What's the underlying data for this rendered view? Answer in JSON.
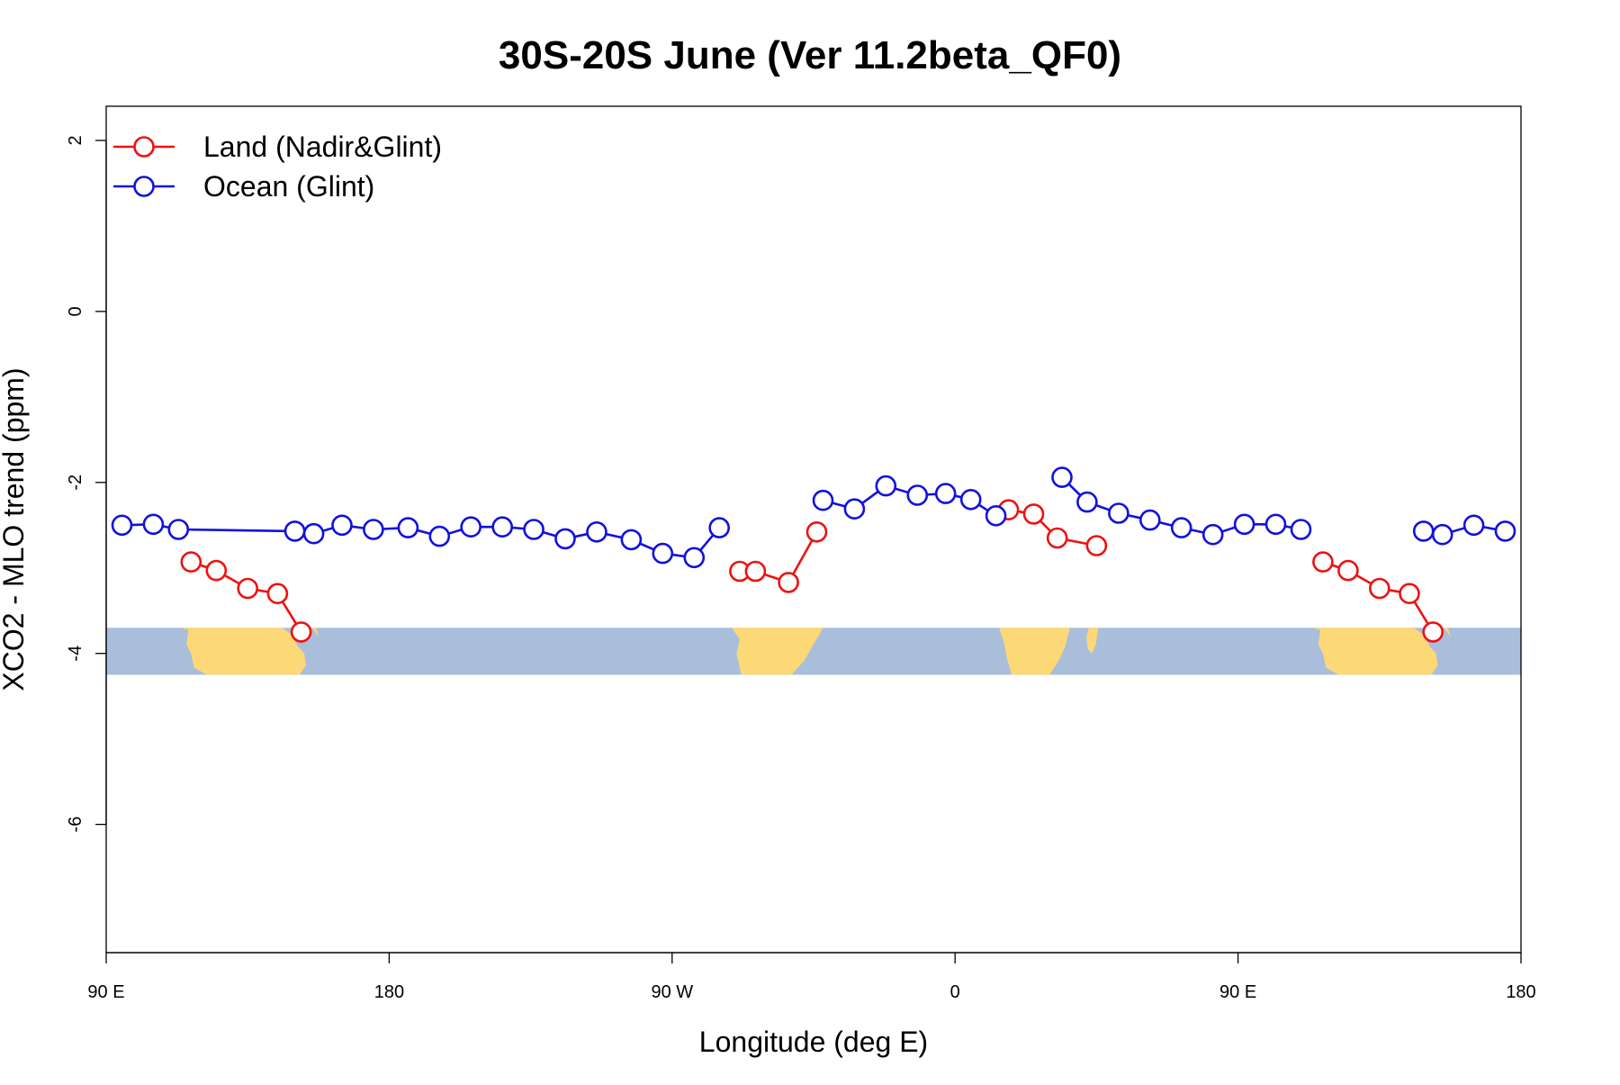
{
  "chart_data": {
    "type": "line",
    "title": "30S-20S June (Ver 11.2beta_QF0)",
    "xlabel": "Longitude (deg E)",
    "ylabel": "XCO2 - MLO trend (ppm)",
    "xlim": [
      90,
      540
    ],
    "ylim": [
      -7.5,
      2.4
    ],
    "x_ticks": [
      {
        "value": 90,
        "label": "90 E"
      },
      {
        "value": 180,
        "label": "180"
      },
      {
        "value": 270,
        "label": "90 W"
      },
      {
        "value": 360,
        "label": "0"
      },
      {
        "value": 450,
        "label": "90 E"
      },
      {
        "value": 540,
        "label": "180"
      }
    ],
    "y_ticks": [
      {
        "value": 2,
        "label": "2"
      },
      {
        "value": 0,
        "label": "0"
      },
      {
        "value": -2,
        "label": "-2"
      },
      {
        "value": -4,
        "label": "-4"
      },
      {
        "value": -6,
        "label": "-6"
      }
    ],
    "legend_position": "top-left",
    "grid": false,
    "map_strip": {
      "y_range": [
        -3.7,
        -4.25
      ],
      "ocean_color": "#a9bedb",
      "land_color": "#fdd876"
    },
    "series": [
      {
        "name": "Land (Nadir&Glint)",
        "color": "#ee1111",
        "segments": [
          [
            [
              117,
              -2.93
            ],
            [
              125,
              -3.03
            ],
            [
              135,
              -3.24
            ],
            [
              144.5,
              -3.3
            ],
            [
              152,
              -3.75
            ]
          ],
          [
            [
              291.5,
              -3.04
            ],
            [
              296.5,
              -3.04
            ],
            [
              307,
              -3.17
            ],
            [
              316,
              -2.58
            ]
          ],
          [
            [
              377,
              -2.32
            ],
            [
              385,
              -2.37
            ],
            [
              392.5,
              -2.65
            ],
            [
              405,
              -2.74
            ]
          ],
          [
            [
              477,
              -2.93
            ],
            [
              485,
              -3.03
            ],
            [
              495,
              -3.24
            ],
            [
              504.5,
              -3.3
            ],
            [
              512,
              -3.75
            ]
          ]
        ]
      },
      {
        "name": "Ocean (Glint)",
        "color": "#1111dd",
        "segments": [
          [
            [
              95,
              -2.5
            ],
            [
              105,
              -2.49
            ],
            [
              113,
              -2.55
            ],
            [
              150,
              -2.57
            ],
            [
              156,
              -2.6
            ],
            [
              165,
              -2.5
            ],
            [
              175,
              -2.55
            ],
            [
              186,
              -2.53
            ],
            [
              196,
              -2.63
            ],
            [
              206,
              -2.52
            ],
            [
              216,
              -2.52
            ],
            [
              226,
              -2.55
            ],
            [
              236,
              -2.66
            ],
            [
              246,
              -2.58
            ],
            [
              257,
              -2.67
            ],
            [
              267,
              -2.83
            ],
            [
              277,
              -2.88
            ],
            [
              285,
              -2.53
            ]
          ],
          [
            [
              318,
              -2.21
            ],
            [
              328,
              -2.31
            ],
            [
              338,
              -2.04
            ],
            [
              348,
              -2.15
            ],
            [
              357,
              -2.13
            ],
            [
              365,
              -2.2
            ],
            [
              373,
              -2.39
            ]
          ],
          [
            [
              394,
              -1.94
            ],
            [
              402,
              -2.23
            ],
            [
              412,
              -2.36
            ],
            [
              422,
              -2.44
            ],
            [
              432,
              -2.53
            ],
            [
              442,
              -2.61
            ],
            [
              452,
              -2.49
            ],
            [
              462,
              -2.49
            ],
            [
              470,
              -2.55
            ]
          ],
          [
            [
              509,
              -2.57
            ],
            [
              515,
              -2.61
            ],
            [
              525,
              -2.5
            ],
            [
              535,
              -2.57
            ]
          ]
        ]
      }
    ]
  }
}
